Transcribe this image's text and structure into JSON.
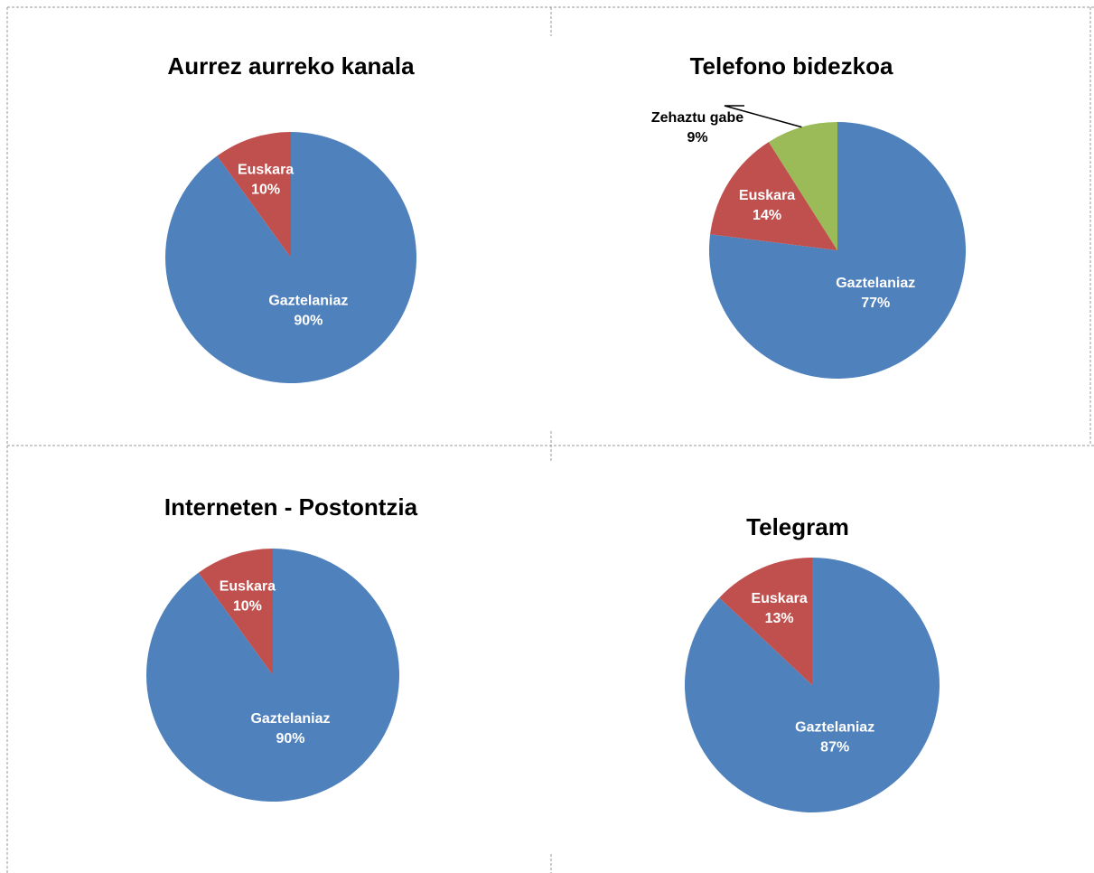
{
  "chart_data": [
    {
      "type": "pie",
      "title": "Aurrez aurreko kanala",
      "categories": [
        "Gaztelaniaz",
        "Euskara"
      ],
      "values": [
        90,
        10
      ],
      "value_labels": [
        "90%",
        "10%"
      ],
      "colors": [
        "#4f81bd",
        "#c0504d"
      ]
    },
    {
      "type": "pie",
      "title": "Telefono bidezkoa",
      "categories": [
        "Gaztelaniaz",
        "Euskara",
        "Zehaztu gabe"
      ],
      "values": [
        77,
        14,
        9
      ],
      "value_labels": [
        "77%",
        "14%",
        "9%"
      ],
      "colors": [
        "#4f81bd",
        "#c0504d",
        "#9bbb59"
      ]
    },
    {
      "type": "pie",
      "title": "Interneten - Postontzia",
      "categories": [
        "Gaztelaniaz",
        "Euskara"
      ],
      "values": [
        90,
        10
      ],
      "value_labels": [
        "90%",
        "10%"
      ],
      "colors": [
        "#4f81bd",
        "#c0504d"
      ]
    },
    {
      "type": "pie",
      "title": "Telegram",
      "categories": [
        "Gaztelaniaz",
        "Euskara"
      ],
      "values": [
        87,
        13
      ],
      "value_labels": [
        "87%",
        "13%"
      ],
      "colors": [
        "#4f81bd",
        "#c0504d"
      ]
    }
  ]
}
